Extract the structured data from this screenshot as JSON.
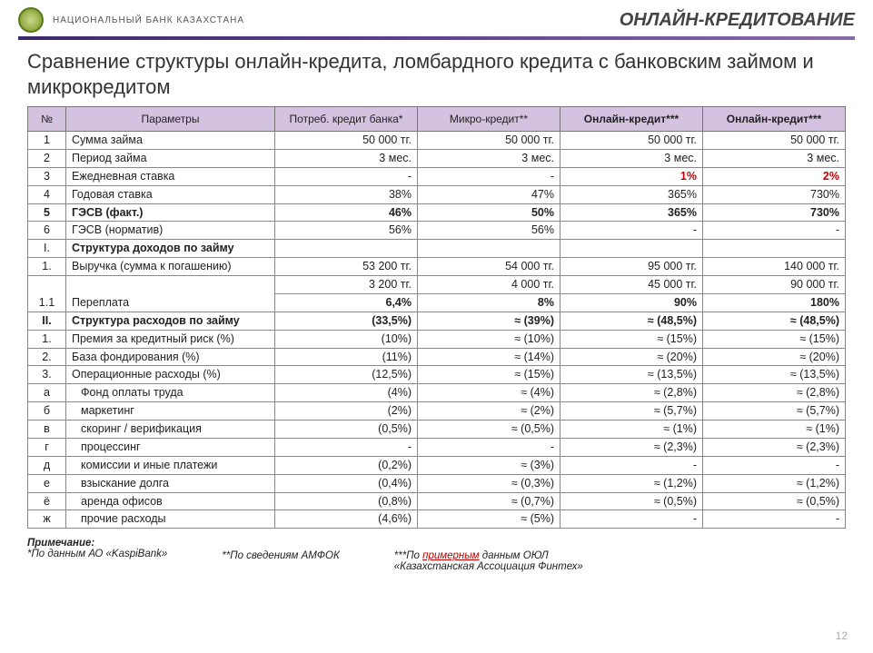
{
  "header": {
    "org_name": "НАЦИОНАЛЬНЫЙ БАНК КАЗАХСТАНА",
    "page_tag": "ОНЛАЙН-КРЕДИТОВАНИЕ"
  },
  "title": "Сравнение структуры онлайн-кредита, ломбардного кредита с банковским займом и микрокредитом",
  "table": {
    "head": {
      "num": "№",
      "param": "Параметры",
      "c1": "Потреб. кредит банка*",
      "c2": "Микро-кредит**",
      "c3": "Онлайн-кредит***",
      "c4": "Онлайн-кредит***"
    },
    "rows": [
      {
        "n": "1",
        "p": "Сумма займа",
        "v": [
          "50 000 тг.",
          "50 000 тг.",
          "50 000 тг.",
          "50 000 тг."
        ]
      },
      {
        "n": "2",
        "p": "Период займа",
        "v": [
          "3 мес.",
          "3 мес.",
          "3 мес.",
          "3 мес."
        ]
      },
      {
        "n": "3",
        "p": "Ежедневная ставка",
        "v": [
          "-",
          "-",
          "1%",
          "2%"
        ],
        "redcols": [
          2,
          3
        ]
      },
      {
        "n": "4",
        "p": "Годовая ставка",
        "v": [
          "38%",
          "47%",
          "365%",
          "730%"
        ]
      },
      {
        "n": "5",
        "p": "ГЭСВ (факт.)",
        "v": [
          "46%",
          "50%",
          "365%",
          "730%"
        ],
        "bold": true
      },
      {
        "n": "6",
        "p": "ГЭСВ (норматив)",
        "p_align": "right",
        "v": [
          "56%",
          "56%",
          "-",
          "-"
        ]
      },
      {
        "n": "I.",
        "p": "Структура доходов по займу",
        "section": true,
        "v": [
          "",
          "",
          "",
          ""
        ]
      },
      {
        "n": "1.",
        "p": "Выручка (сумма к погашению)",
        "v": [
          "53 200 тг.",
          "54 000 тг.",
          "95 000 тг.",
          "140 000 тг."
        ]
      },
      {
        "n": "",
        "p": "",
        "v": [
          "3 200 тг.",
          "4 000 тг.",
          "45 000 тг.",
          "90 000 тг."
        ],
        "noborder_bottom": true
      },
      {
        "n": "1.1",
        "p": "Переплата",
        "v": [
          "6,4%",
          "8%",
          "90%",
          "180%"
        ],
        "bold_vals": true
      },
      {
        "n": "II.",
        "p": "Структура расходов по займу",
        "section": true,
        "bold": true,
        "v": [
          "(33,5%)",
          "≈ (39%)",
          "≈ (48,5%)",
          "≈ (48,5%)"
        ]
      },
      {
        "n": "1.",
        "p": "Премия за кредитный риск (%)",
        "v": [
          "(10%)",
          "≈ (10%)",
          "≈ (15%)",
          "≈ (15%)"
        ]
      },
      {
        "n": "2.",
        "p": "База фондирования (%)",
        "v": [
          "(11%)",
          "≈ (14%)",
          "≈ (20%)",
          "≈ (20%)"
        ]
      },
      {
        "n": "3.",
        "p": "Операционные расходы (%)",
        "v": [
          "(12,5%)",
          "≈ (15%)",
          "≈ (13,5%)",
          "≈ (13,5%)"
        ]
      },
      {
        "n": "а",
        "p": "Фонд оплаты труда",
        "ind": 1,
        "v": [
          "(4%)",
          "≈ (4%)",
          "≈ (2,8%)",
          "≈ (2,8%)"
        ]
      },
      {
        "n": "б",
        "p": "маркетинг",
        "ind": 1,
        "v": [
          "(2%)",
          "≈ (2%)",
          "≈ (5,7%)",
          "≈ (5,7%)"
        ]
      },
      {
        "n": "в",
        "p": "скоринг / верификация",
        "ind": 1,
        "v": [
          "(0,5%)",
          "≈ (0,5%)",
          "≈ (1%)",
          "≈ (1%)"
        ]
      },
      {
        "n": "г",
        "p": "процессинг",
        "ind": 1,
        "v": [
          "-",
          "-",
          "≈ (2,3%)",
          "≈ (2,3%)"
        ]
      },
      {
        "n": "д",
        "p": "комиссии и иные платежи",
        "ind": 1,
        "v": [
          "(0,2%)",
          "≈ (3%)",
          "-",
          "-"
        ]
      },
      {
        "n": "е",
        "p": "взыскание долга",
        "ind": 1,
        "v": [
          "(0,4%)",
          "≈ (0,3%)",
          "≈ (1,2%)",
          "≈ (1,2%)"
        ]
      },
      {
        "n": "ё",
        "p": "аренда офисов",
        "ind": 1,
        "v": [
          "(0,8%)",
          "≈ (0,7%)",
          "≈ (0,5%)",
          "≈ (0,5%)"
        ]
      },
      {
        "n": "ж",
        "p": "прочие расходы",
        "ind": 1,
        "v": [
          "(4,6%)",
          "≈ (5%)",
          "-",
          "-"
        ]
      }
    ]
  },
  "footnotes": {
    "note_label": "Примечание:",
    "n1": "*По данным АО «KaspiBank»",
    "n2": "**По сведениям АМФОК",
    "n3a": "***По ",
    "n3b": "примерным",
    "n3c": " данным ОЮЛ",
    "n3d": "«Казахстанская Ассоциация Финтех»"
  },
  "page_number": "12",
  "colors": {
    "header_bg": "#d4c3e0",
    "divider_start": "#3a2a6a",
    "red": "#c30000"
  }
}
